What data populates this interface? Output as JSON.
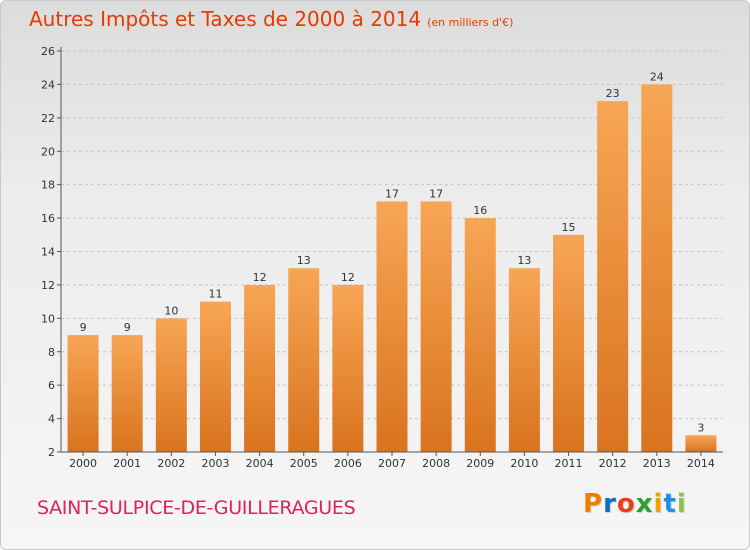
{
  "title": "Autres Impôts et Taxes de 2000 à 2014",
  "unit_label": "(en milliers d'€)",
  "commune": "SAINT-SULPICE-DE-GUILLERAGUES",
  "logo": {
    "text": "Proxiti",
    "letter_colors": [
      "#f07d00",
      "#0a6fc2",
      "#e8401c",
      "#2f9e2f",
      "#f0a000",
      "#1e90e0",
      "#8bc34a"
    ]
  },
  "colors": {
    "title": "#e63a00",
    "commune": "#e0205f",
    "bar_light": "#f7a655",
    "bar_dark": "#d9731e"
  },
  "chart_data": {
    "type": "bar",
    "categories": [
      "2000",
      "2001",
      "2002",
      "2003",
      "2004",
      "2005",
      "2006",
      "2007",
      "2008",
      "2009",
      "2010",
      "2011",
      "2012",
      "2013",
      "2014"
    ],
    "values": [
      9,
      9,
      10,
      11,
      12,
      13,
      12,
      17,
      17,
      16,
      13,
      15,
      23,
      24,
      3
    ],
    "ylim": [
      2,
      26
    ],
    "yticks": [
      2,
      4,
      6,
      8,
      10,
      12,
      14,
      16,
      18,
      20,
      22,
      24,
      26
    ],
    "grid": true,
    "data_labels": true
  }
}
